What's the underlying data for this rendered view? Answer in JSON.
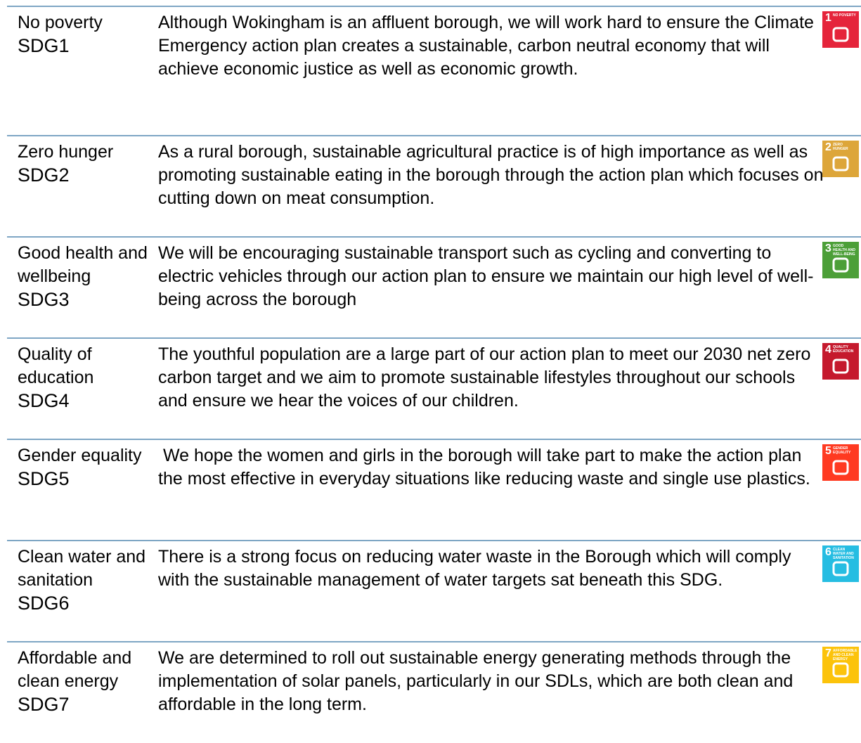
{
  "rows": [
    {
      "goal": "No poverty",
      "code": "SDG1",
      "text": "Although Wokingham is an affluent borough, we will work hard to ensure the Climate Emergency action plan creates a sustainable, carbon neutral economy that will achieve economic justice as well as economic growth.",
      "icon": {
        "number": "1",
        "label": "NO POVERTY",
        "color": "#e5243b"
      }
    },
    {
      "goal": "Zero hunger",
      "code": "SDG2",
      "text": "As a rural borough, sustainable agricultural practice is of high importance as well as promoting sustainable eating in the borough through the action plan which focuses on cutting down on meat consumption.",
      "icon": {
        "number": "2",
        "label": "ZERO HUNGER",
        "color": "#dda63a"
      }
    },
    {
      "goal": "Good health and wellbeing",
      "code": "SDG3",
      "text": "We will be encouraging sustainable transport such as cycling and converting to electric vehicles through our action plan to ensure we maintain our high level of well-being across the borough",
      "icon": {
        "number": "3",
        "label": "GOOD HEALTH AND WELL-BEING",
        "color": "#4c9f38"
      }
    },
    {
      "goal": "Quality of education",
      "code": "SDG4",
      "text": "The youthful population are a large part of our action plan to meet our 2030 net zero carbon target and we aim to promote sustainable lifestyles throughout our schools and ensure we hear the voices of our children.",
      "icon": {
        "number": "4",
        "label": "QUALITY EDUCATION",
        "color": "#c5192d"
      }
    },
    {
      "goal": "Gender equality",
      "code": "SDG5",
      "text": " We hope the women and girls in the borough will take part to make the action plan the most effective in everyday situations like reducing waste and single use plastics.",
      "icon": {
        "number": "5",
        "label": "GENDER EQUALITY",
        "color": "#ff3a21"
      }
    },
    {
      "goal": "Clean water and sanitation",
      "code": "SDG6",
      "text": "There is a strong focus on reducing water waste in the Borough which will comply with the sustainable management of water targets sat beneath this SDG.",
      "icon": {
        "number": "6",
        "label": "CLEAN WATER AND SANITATION",
        "color": "#26bde2"
      }
    },
    {
      "goal": "Affordable and clean energy",
      "code": "SDG7",
      "text": "We are determined to roll out sustainable energy generating methods through the implementation of solar panels, particularly in our SDLs, which are both clean and affordable in the long term.",
      "icon": {
        "number": "7",
        "label": "AFFORDABLE AND CLEAN ENERGY",
        "color": "#fcc30b"
      }
    }
  ]
}
